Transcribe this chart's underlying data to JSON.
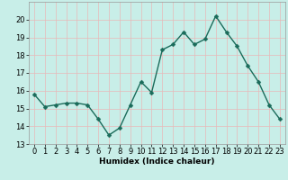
{
  "x": [
    0,
    1,
    2,
    3,
    4,
    5,
    6,
    7,
    8,
    9,
    10,
    11,
    12,
    13,
    14,
    15,
    16,
    17,
    18,
    19,
    20,
    21,
    22,
    23
  ],
  "y": [
    15.8,
    15.1,
    15.2,
    15.3,
    15.3,
    15.2,
    14.4,
    13.5,
    13.9,
    15.2,
    16.5,
    15.9,
    18.3,
    18.6,
    19.3,
    18.6,
    18.9,
    20.2,
    19.3,
    18.5,
    17.4,
    16.5,
    15.2,
    14.4
  ],
  "bg_color": "#c8eee8",
  "line_color": "#1a6b5a",
  "marker_color": "#1a6b5a",
  "grid_color": "#e8b8b8",
  "xlabel": "Humidex (Indice chaleur)",
  "ylim": [
    13,
    21
  ],
  "xlim": [
    -0.5,
    23.5
  ],
  "yticks": [
    13,
    14,
    15,
    16,
    17,
    18,
    19,
    20
  ],
  "xticks": [
    0,
    1,
    2,
    3,
    4,
    5,
    6,
    7,
    8,
    9,
    10,
    11,
    12,
    13,
    14,
    15,
    16,
    17,
    18,
    19,
    20,
    21,
    22,
    23
  ],
  "xtick_labels": [
    "0",
    "1",
    "2",
    "3",
    "4",
    "5",
    "6",
    "7",
    "8",
    "9",
    "10",
    "11",
    "12",
    "13",
    "14",
    "15",
    "16",
    "17",
    "18",
    "19",
    "20",
    "21",
    "22",
    "23"
  ],
  "xlabel_fontsize": 6.5,
  "tick_fontsize": 6,
  "line_width": 1.0,
  "marker_size": 2.5
}
